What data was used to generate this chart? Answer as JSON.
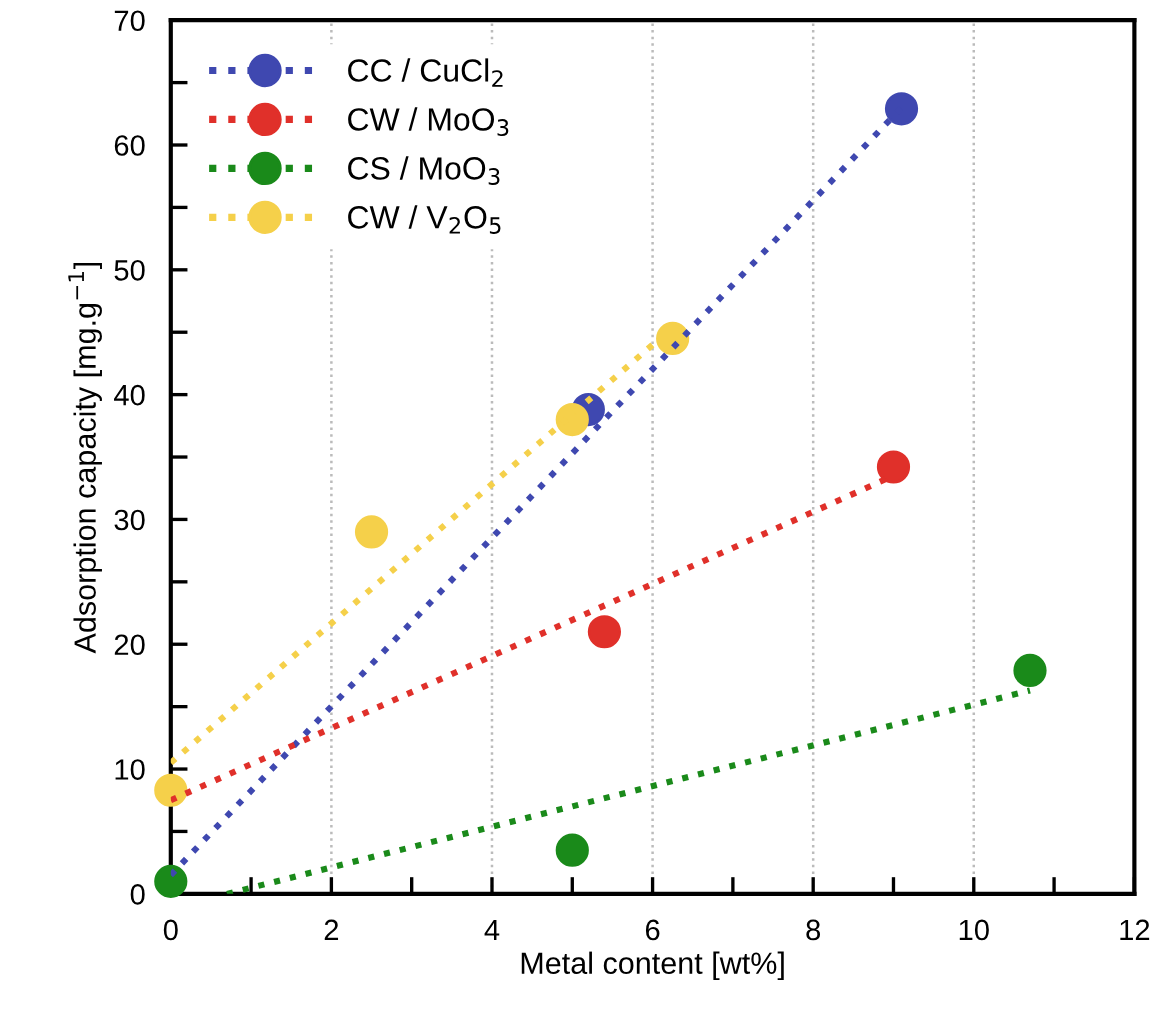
{
  "chart_data": {
    "type": "scatter",
    "xlabel": "Metal content [wt%]",
    "ylabel": "Adsorption capacity [mg.g$^{−1}$]",
    "xlim": [
      0,
      12
    ],
    "ylim": [
      0,
      70
    ],
    "xticks": [
      0,
      {
        "value": 1,
        "label": null
      },
      2,
      {
        "value": 3,
        "label": null
      },
      4,
      {
        "value": 5,
        "label": null
      },
      6,
      {
        "value": 7,
        "label": null
      },
      8,
      {
        "value": 9,
        "label": null
      },
      10,
      {
        "value": 11,
        "label": null
      },
      12
    ],
    "yticks": [
      0,
      {
        "value": 5,
        "label": null
      },
      10,
      {
        "value": 15,
        "label": null
      },
      20,
      {
        "value": 25,
        "label": null
      },
      30,
      {
        "value": 35,
        "label": null
      },
      40,
      {
        "value": 45,
        "label": null
      },
      50,
      {
        "value": 55,
        "label": null
      },
      60,
      {
        "value": 65,
        "label": null
      },
      70
    ],
    "grid": "x",
    "legend": "top left",
    "marker": "circle",
    "series": [
      {
        "type": "line",
        "marker": "none",
        "color": "#3f48b0",
        "line_style": "dotted",
        "x": [
          0,
          9.1
        ],
        "values": [
          1.5,
          63
        ]
      },
      {
        "type": "line",
        "marker": "none",
        "color": "#e0302a",
        "line_style": "dotted",
        "x": [
          0,
          9
        ],
        "values": [
          7.5,
          33.5
        ]
      },
      {
        "type": "line",
        "marker": "none",
        "color": "#1a8a1a",
        "line_style": "dotted",
        "x": [
          0.7,
          10.7
        ],
        "values": [
          0,
          16.3
        ]
      },
      {
        "type": "line",
        "marker": "none",
        "color": "#f5d04a",
        "line_style": "dotted",
        "x": [
          0,
          6
        ],
        "values": [
          10.5,
          44
        ]
      },
      {
        "name": "CC / CuCl$_{2}$",
        "color": "#3f48b0",
        "x": [
          5.2,
          9.1
        ],
        "values": [
          38.8,
          62.9
        ]
      },
      {
        "name": "CW / MoO$_{3}$",
        "color": "#e0302a",
        "x": [
          5.4,
          9
        ],
        "values": [
          21,
          34.2
        ]
      },
      {
        "name": "CS / MoO$_{3}$",
        "color": "#1a8a1a",
        "x": [
          0,
          5,
          10.7
        ],
        "values": [
          1,
          3.5,
          17.9
        ]
      },
      {
        "name": "CW / V$_{2}$O$_{5}$",
        "color": "#f5d04a",
        "x": [
          0,
          2.5,
          5,
          6.25
        ],
        "values": [
          8.3,
          29,
          38,
          44.5
        ]
      }
    ]
  }
}
